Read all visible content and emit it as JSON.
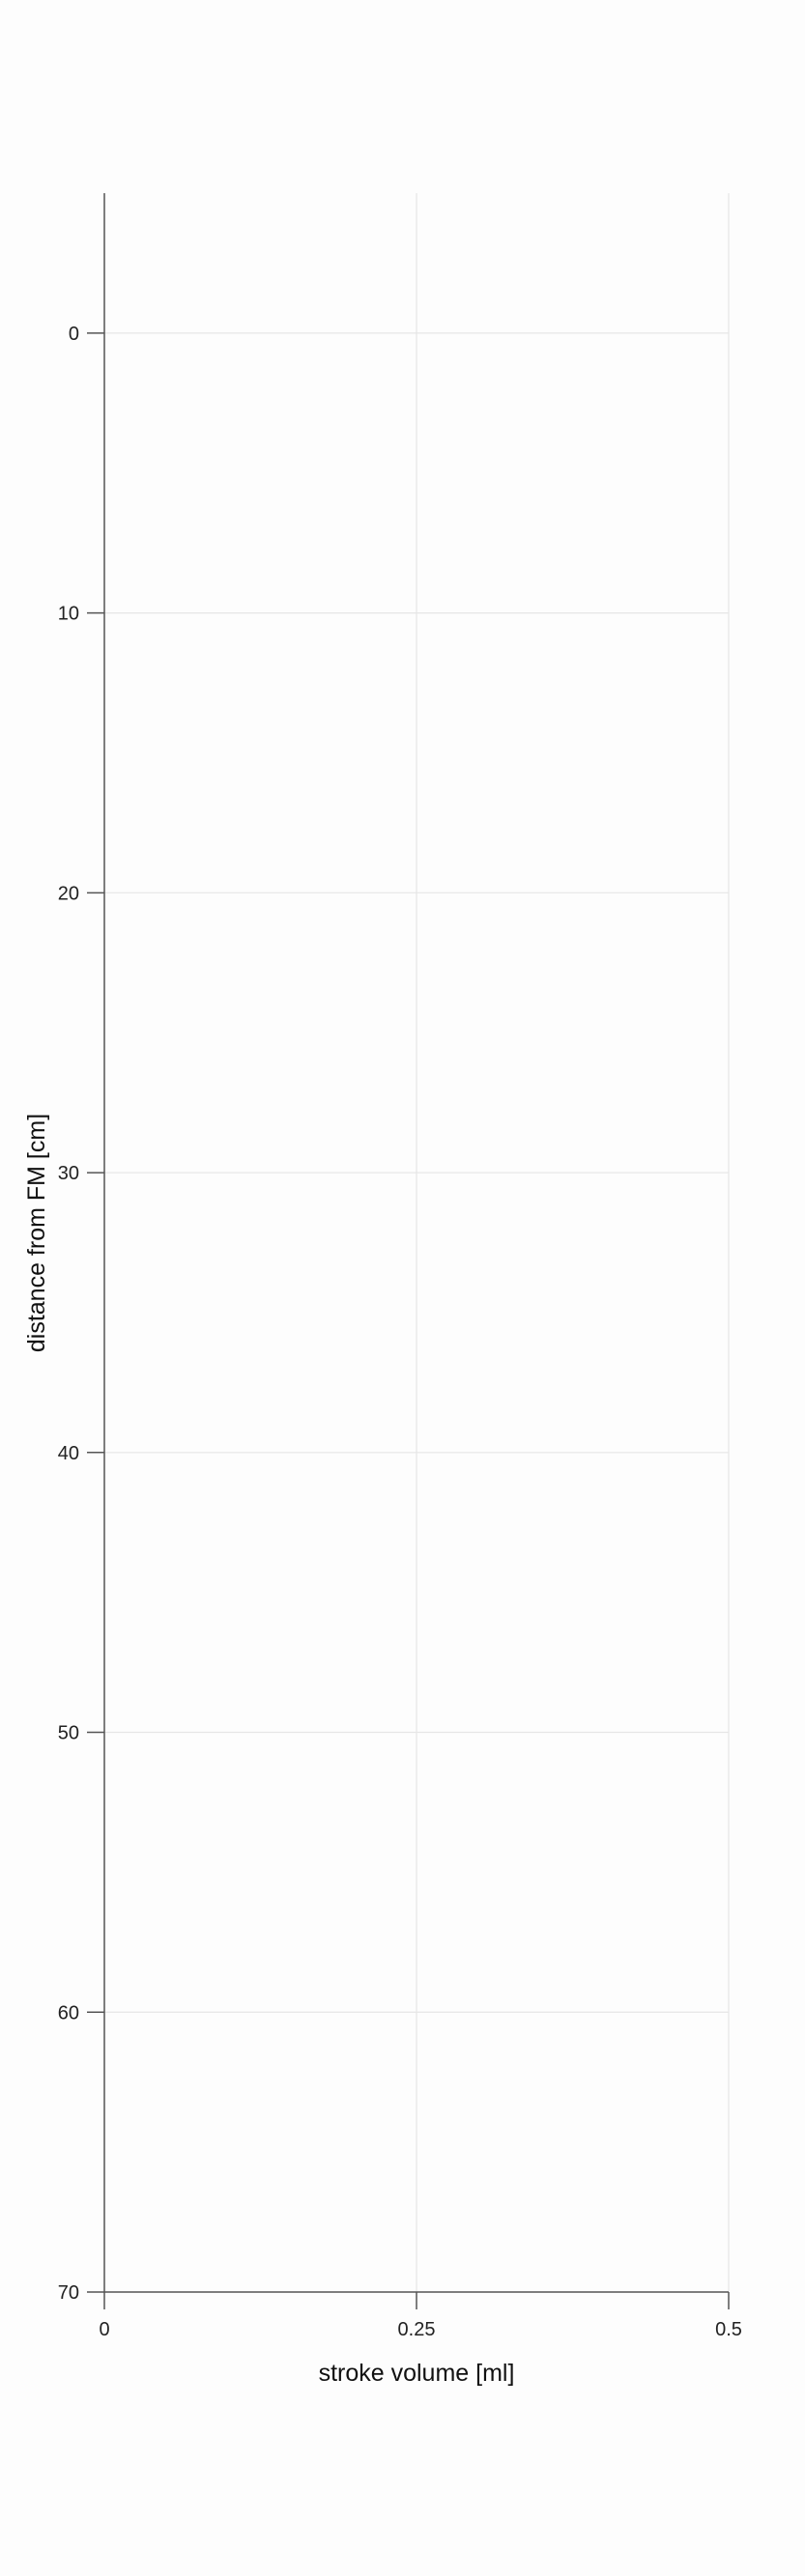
{
  "chart_data": {
    "type": "line",
    "xlabel": "stroke volume [ml]",
    "ylabel": "distance from FM [cm]",
    "xlim": [
      0,
      0.5
    ],
    "ylim": [
      -5,
      70
    ],
    "y_inverted": true,
    "x_ticks": [
      "0",
      "0.25",
      "0.5"
    ],
    "y_ticks": [
      "0",
      "10",
      "20",
      "30",
      "40",
      "50",
      "60",
      "70"
    ],
    "grid": true,
    "series": []
  }
}
